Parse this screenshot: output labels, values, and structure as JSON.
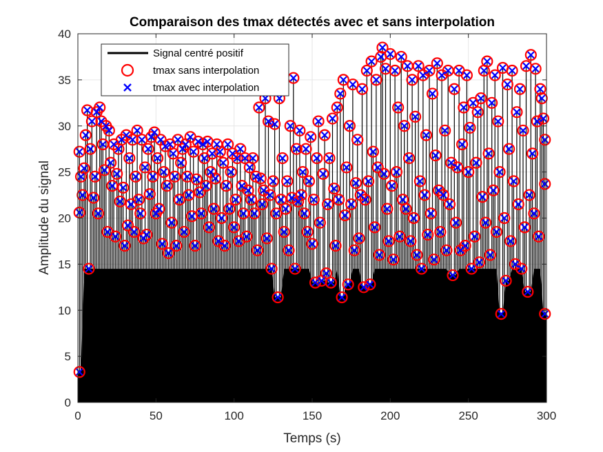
{
  "chart_data": {
    "type": "line",
    "title": "Comparaison des tmax détectés avec et sans interpolation",
    "xlabel": "Temps (s)",
    "ylabel": "Amplitude du signal",
    "xlim": [
      0,
      300
    ],
    "ylim": [
      0,
      40
    ],
    "xticks": [
      "0",
      "50",
      "100",
      "150",
      "200",
      "250",
      "300"
    ],
    "yticks": [
      "0",
      "5",
      "10",
      "15",
      "20",
      "25",
      "30",
      "35",
      "40"
    ],
    "grid": true,
    "legend_position": "top-left",
    "colors": {
      "signal": "#000000",
      "peaks_raw": "#ff0000",
      "peaks_interp": "#0000ff"
    },
    "series": [
      {
        "name": "Signal centré positif",
        "style": "line"
      },
      {
        "name": "tmax sans interpolation",
        "style": "circle"
      },
      {
        "name": "tmax avec interpolation",
        "style": "x"
      }
    ],
    "peaks": [
      [
        1,
        3.3
      ],
      [
        1,
        20.6
      ],
      [
        1,
        27.2
      ],
      [
        2,
        24.5
      ],
      [
        3,
        22.5
      ],
      [
        4,
        25.4
      ],
      [
        5,
        29
      ],
      [
        6,
        31.7
      ],
      [
        7,
        14.5
      ],
      [
        8,
        27.5
      ],
      [
        9,
        30.5
      ],
      [
        10,
        22.2
      ],
      [
        11,
        24.5
      ],
      [
        12,
        31.5
      ],
      [
        13,
        20.5
      ],
      [
        14,
        32
      ],
      [
        15,
        30.5
      ],
      [
        16,
        28
      ],
      [
        17,
        25.2
      ],
      [
        18,
        30
      ],
      [
        19,
        18.5
      ],
      [
        20,
        29.5
      ],
      [
        21,
        26
      ],
      [
        22,
        23.5
      ],
      [
        23,
        28
      ],
      [
        24,
        18
      ],
      [
        25,
        24.8
      ],
      [
        26,
        27.5
      ],
      [
        27,
        21.8
      ],
      [
        28,
        28.5
      ],
      [
        29,
        23.3
      ],
      [
        30,
        17
      ],
      [
        31,
        29
      ],
      [
        32,
        19.2
      ],
      [
        33,
        26.5
      ],
      [
        34,
        21.5
      ],
      [
        35,
        28.5
      ],
      [
        36,
        18.5
      ],
      [
        37,
        24.5
      ],
      [
        38,
        29.5
      ],
      [
        39,
        22
      ],
      [
        40,
        20.5
      ],
      [
        41,
        28.5
      ],
      [
        42,
        17.8
      ],
      [
        43,
        25.5
      ],
      [
        44,
        18.2
      ],
      [
        45,
        27.5
      ],
      [
        46,
        22.6
      ],
      [
        47,
        28.8
      ],
      [
        48,
        24.5
      ],
      [
        49,
        29.3
      ],
      [
        50,
        20.5
      ],
      [
        51,
        26.5
      ],
      [
        52,
        21
      ],
      [
        53,
        28.5
      ],
      [
        54,
        17.2
      ],
      [
        55,
        25
      ],
      [
        56,
        27.8
      ],
      [
        57,
        23.5
      ],
      [
        58,
        16.2
      ],
      [
        59,
        28
      ],
      [
        60,
        19.5
      ],
      [
        61,
        27
      ],
      [
        62,
        24.5
      ],
      [
        63,
        17
      ],
      [
        64,
        28.5
      ],
      [
        65,
        22
      ],
      [
        66,
        26
      ],
      [
        67,
        27.5
      ],
      [
        68,
        18.5
      ],
      [
        69,
        28
      ],
      [
        70,
        24.5
      ],
      [
        71,
        22.5
      ],
      [
        72,
        28.8
      ],
      [
        73,
        20.2
      ],
      [
        74,
        27.2
      ],
      [
        75,
        17
      ],
      [
        76,
        24.2
      ],
      [
        77,
        28.3
      ],
      [
        78,
        22.8
      ],
      [
        79,
        20.5
      ],
      [
        80,
        28
      ],
      [
        81,
        26.5
      ],
      [
        82,
        23.5
      ],
      [
        83,
        28.3
      ],
      [
        84,
        19
      ],
      [
        85,
        25
      ],
      [
        86,
        27
      ],
      [
        87,
        21
      ],
      [
        88,
        24.3
      ],
      [
        89,
        28
      ],
      [
        90,
        17.5
      ],
      [
        91,
        27.2
      ],
      [
        92,
        20
      ],
      [
        93,
        26
      ],
      [
        94,
        17
      ],
      [
        95,
        23.5
      ],
      [
        96,
        28
      ],
      [
        97,
        21
      ],
      [
        98,
        25
      ],
      [
        99,
        27
      ],
      [
        100,
        19
      ],
      [
        101,
        22
      ],
      [
        102,
        26.5
      ],
      [
        103,
        17.5
      ],
      [
        104,
        27.5
      ],
      [
        105,
        23.5
      ],
      [
        106,
        20.5
      ],
      [
        107,
        26.5
      ],
      [
        108,
        18
      ],
      [
        109,
        23
      ],
      [
        110,
        25.5
      ],
      [
        111,
        22
      ],
      [
        112,
        26.5
      ],
      [
        113,
        20.5
      ],
      [
        114,
        24.5
      ],
      [
        115,
        16.5
      ],
      [
        116,
        32
      ],
      [
        117,
        24.3
      ],
      [
        118,
        21.5
      ],
      [
        119,
        23
      ],
      [
        120,
        33
      ],
      [
        121,
        17.8
      ],
      [
        122,
        30.5
      ],
      [
        123,
        22.5
      ],
      [
        124,
        14.5
      ],
      [
        125,
        24
      ],
      [
        126,
        30.2
      ],
      [
        127,
        20.5
      ],
      [
        128,
        11.4
      ],
      [
        129,
        33
      ],
      [
        130,
        22
      ],
      [
        131,
        26.5
      ],
      [
        132,
        18.5
      ],
      [
        133,
        21
      ],
      [
        134,
        24
      ],
      [
        135,
        16.5
      ],
      [
        136,
        30
      ],
      [
        137,
        22.2
      ],
      [
        138,
        35.2
      ],
      [
        139,
        14.5
      ],
      [
        140,
        27.5
      ],
      [
        141,
        21.8
      ],
      [
        142,
        29.5
      ],
      [
        143,
        22.5
      ],
      [
        144,
        25
      ],
      [
        145,
        20.5
      ],
      [
        146,
        27.5
      ],
      [
        147,
        18.5
      ],
      [
        148,
        24
      ],
      [
        149,
        28.8
      ],
      [
        150,
        17.2
      ],
      [
        151,
        22
      ],
      [
        152,
        13
      ],
      [
        153,
        26.5
      ],
      [
        154,
        30.5
      ],
      [
        155,
        19.5
      ],
      [
        156,
        13.2
      ],
      [
        157,
        24.8
      ],
      [
        158,
        29
      ],
      [
        159,
        14
      ],
      [
        160,
        21.5
      ],
      [
        161,
        26.5
      ],
      [
        162,
        13
      ],
      [
        163,
        30.8
      ],
      [
        164,
        23.2
      ],
      [
        165,
        17
      ],
      [
        166,
        32
      ],
      [
        167,
        22
      ],
      [
        168,
        33.5
      ],
      [
        169,
        11.4
      ],
      [
        170,
        35
      ],
      [
        171,
        20.3
      ],
      [
        172,
        25.5
      ],
      [
        173,
        12.8
      ],
      [
        174,
        30
      ],
      [
        175,
        21.5
      ],
      [
        176,
        34.5
      ],
      [
        177,
        16.5
      ],
      [
        178,
        23.8
      ],
      [
        179,
        28.5
      ],
      [
        180,
        17.8
      ],
      [
        181,
        22.5
      ],
      [
        182,
        34
      ],
      [
        183,
        12.5
      ],
      [
        184,
        22
      ],
      [
        185,
        36
      ],
      [
        186,
        24
      ],
      [
        187,
        12.8
      ],
      [
        188,
        37
      ],
      [
        189,
        27.2
      ],
      [
        190,
        19
      ],
      [
        191,
        35
      ],
      [
        192,
        25.5
      ],
      [
        193,
        16
      ],
      [
        194,
        37.5
      ],
      [
        195,
        38.5
      ],
      [
        196,
        24.8
      ],
      [
        197,
        36.2
      ],
      [
        198,
        21
      ],
      [
        199,
        17.5
      ],
      [
        200,
        37.8
      ],
      [
        201,
        23.5
      ],
      [
        202,
        15.5
      ],
      [
        203,
        36
      ],
      [
        204,
        25
      ],
      [
        205,
        32
      ],
      [
        206,
        18
      ],
      [
        207,
        37.5
      ],
      [
        208,
        22
      ],
      [
        209,
        30
      ],
      [
        210,
        21
      ],
      [
        211,
        36.5
      ],
      [
        212,
        26.5
      ],
      [
        213,
        17.5
      ],
      [
        214,
        35
      ],
      [
        215,
        20
      ],
      [
        216,
        31
      ],
      [
        217,
        16
      ],
      [
        218,
        36.5
      ],
      [
        219,
        24
      ],
      [
        220,
        14.5
      ],
      [
        221,
        35.5
      ],
      [
        222,
        22.5
      ],
      [
        223,
        29
      ],
      [
        224,
        18.2
      ],
      [
        225,
        36
      ],
      [
        226,
        20.5
      ],
      [
        227,
        33.5
      ],
      [
        228,
        15.5
      ],
      [
        229,
        26.8
      ],
      [
        230,
        36.8
      ],
      [
        231,
        23
      ],
      [
        232,
        18.5
      ],
      [
        233,
        35.5
      ],
      [
        234,
        22.5
      ],
      [
        235,
        29.5
      ],
      [
        236,
        16.5
      ],
      [
        237,
        36
      ],
      [
        238,
        21.5
      ],
      [
        239,
        26
      ],
      [
        240,
        13.8
      ],
      [
        241,
        34
      ],
      [
        242,
        19.5
      ],
      [
        243,
        25.5
      ],
      [
        244,
        36
      ],
      [
        245,
        16.5
      ],
      [
        246,
        28
      ],
      [
        247,
        32
      ],
      [
        248,
        17
      ],
      [
        249,
        35.5
      ],
      [
        250,
        25
      ],
      [
        251,
        29.8
      ],
      [
        252,
        14.5
      ],
      [
        253,
        32.5
      ],
      [
        254,
        18
      ],
      [
        255,
        26
      ],
      [
        256,
        31.5
      ],
      [
        257,
        15.2
      ],
      [
        258,
        33
      ],
      [
        259,
        22.3
      ],
      [
        260,
        36
      ],
      [
        261,
        19.5
      ],
      [
        262,
        37
      ],
      [
        263,
        27
      ],
      [
        264,
        16
      ],
      [
        265,
        32.5
      ],
      [
        266,
        23
      ],
      [
        267,
        35.5
      ],
      [
        268,
        18.5
      ],
      [
        269,
        30.5
      ],
      [
        270,
        25
      ],
      [
        271,
        9.6
      ],
      [
        272,
        36.3
      ],
      [
        273,
        20
      ],
      [
        274,
        13.2
      ],
      [
        275,
        34.5
      ],
      [
        276,
        27.5
      ],
      [
        277,
        17.5
      ],
      [
        278,
        36
      ],
      [
        279,
        24
      ],
      [
        280,
        15
      ],
      [
        281,
        31.5
      ],
      [
        282,
        21.5
      ],
      [
        283,
        34
      ],
      [
        284,
        14.5
      ],
      [
        285,
        29.5
      ],
      [
        286,
        19
      ],
      [
        287,
        36.5
      ],
      [
        288,
        12
      ],
      [
        289,
        22.5
      ],
      [
        290,
        37.7
      ],
      [
        291,
        27
      ],
      [
        292,
        20.5
      ],
      [
        293,
        36.2
      ],
      [
        294,
        30.5
      ],
      [
        295,
        18
      ],
      [
        296,
        34
      ],
      [
        297,
        33
      ],
      [
        298,
        30.8
      ],
      [
        299,
        28.5
      ],
      [
        299,
        23.7
      ],
      [
        299,
        9.6
      ]
    ]
  }
}
